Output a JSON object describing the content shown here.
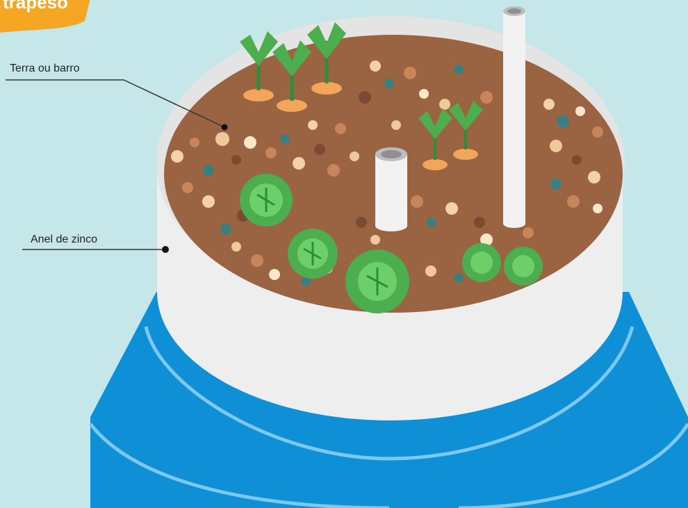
{
  "badge": {
    "text": "trapeso"
  },
  "labels": {
    "soil": "Terra ou barro",
    "ring": "Anel de zinco"
  },
  "colors": {
    "background": "#c5e7ea",
    "barrel_blue": "#0f8fd6",
    "ring_white": "#eeeeee",
    "soil_brown": "#9a6442",
    "plant_green": "#4cae4f",
    "carrot_orange": "#f2a65a",
    "badge_orange": "#f5a623"
  }
}
